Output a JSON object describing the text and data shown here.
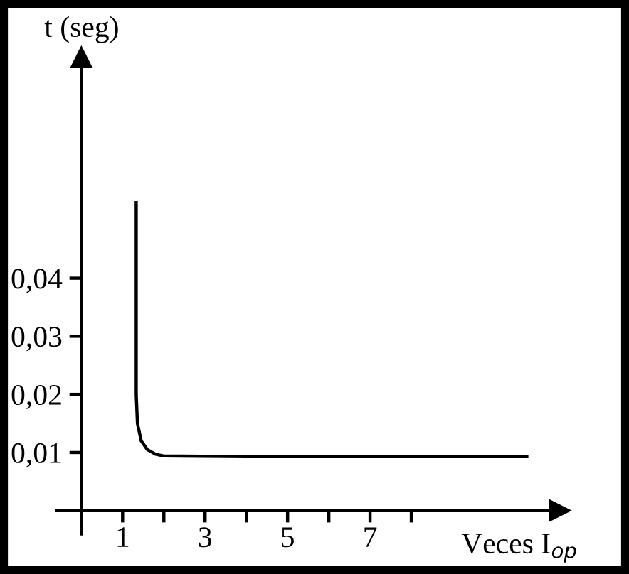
{
  "chart_data": {
    "type": "line",
    "xlabel": "Veces I$_{op}$",
    "ylabel": "t (seg)",
    "color": "#000000",
    "x": [
      1.33,
      1.33,
      1.33,
      1.33,
      1.36,
      1.45,
      1.6,
      1.8,
      2.0,
      4,
      6,
      8,
      10.8
    ],
    "values": [
      0.053,
      0.04,
      0.03,
      0.02,
      0.015,
      0.012,
      0.0105,
      0.0097,
      0.0094,
      0.0093,
      0.0093,
      0.0093,
      0.0093
    ],
    "xlim": [
      -0.6,
      11.6
    ],
    "ylim": [
      -0.004,
      0.078
    ],
    "xticks": [
      {
        "value": 1,
        "label": "1"
      },
      {
        "value": 2,
        "label": null
      },
      {
        "value": 3,
        "label": "3"
      },
      {
        "value": 4,
        "label": null
      },
      {
        "value": 5,
        "label": "5"
      },
      {
        "value": 6,
        "label": null
      },
      {
        "value": 7,
        "label": "7"
      },
      {
        "value": 8,
        "label": null
      }
    ],
    "yticks": [
      {
        "value": 0.01,
        "label": "0,01"
      },
      {
        "value": 0.02,
        "label": "0,02"
      },
      {
        "value": 0.03,
        "label": "0,03"
      },
      {
        "value": 0.04,
        "label": "0,04"
      }
    ],
    "grid": false,
    "legend": false,
    "marker": "none",
    "line_style": "solid"
  }
}
